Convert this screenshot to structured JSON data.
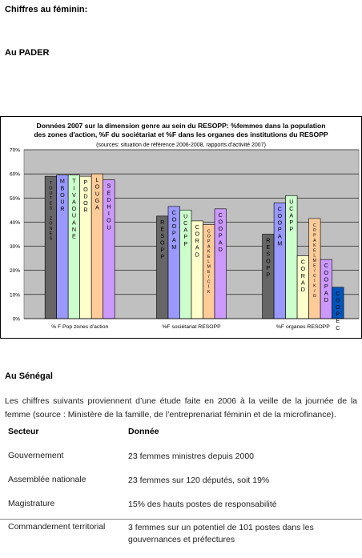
{
  "heading_main": "Chiffres au féminin:",
  "heading_pader": "Au PADER",
  "chart_data": {
    "type": "bar",
    "title_line1": "Données 2007 sur la dimension genre au sein du RESOPP: %femmes dans la population",
    "title_line2": "des zones d'action, %F du sociétariat et %F dans les organes des institutions du RESOPP",
    "subtitle": "(sources: situation de référence 2006-2008, rapports d'activité 2007)",
    "ylim": [
      0,
      70
    ],
    "yticks": [
      "0%",
      "10%",
      "20%",
      "30%",
      "40%",
      "50%",
      "60%",
      "70%"
    ],
    "grid": true,
    "groups": [
      {
        "label": "% F Pop zones d'action",
        "bars": [
          {
            "label": "TOUTES ZONES",
            "value": 59,
            "color": "#666666"
          },
          {
            "label": "MBOUR",
            "value": 59.5,
            "color": "#9999ff"
          },
          {
            "label": "TIVAOUANE",
            "value": 59.5,
            "color": "#ccffcc"
          },
          {
            "label": "PODOR",
            "value": 59,
            "color": "#ffffcc"
          },
          {
            "label": "LOUGA",
            "value": 60,
            "color": "#ffcc99"
          },
          {
            "label": "SEDHIOU",
            "value": 57.5,
            "color": "#cc99ff"
          }
        ]
      },
      {
        "label": "%F sociétariat RESOPP",
        "bars": [
          {
            "label": "RESOPP",
            "value": 42.5,
            "color": "#666666"
          },
          {
            "label": "COOPAM",
            "value": 46.5,
            "color": "#9999ff"
          },
          {
            "label": "UCAPP",
            "value": 45,
            "color": "#ccffcc"
          },
          {
            "label": "CORAD",
            "value": 40.5,
            "color": "#ffffcc"
          },
          {
            "label": "COPAKELME/CIK",
            "value": 39,
            "color": "#ffcc99"
          },
          {
            "label": "COOPAD",
            "value": 45.5,
            "color": "#cc99ff"
          }
        ]
      },
      {
        "label": "%F organes RESOPP",
        "bars": [
          {
            "label": "RESOPP",
            "value": 35,
            "color": "#666666"
          },
          {
            "label": "COOPAM",
            "value": 48,
            "color": "#9999ff"
          },
          {
            "label": "UCAPP",
            "value": 51,
            "color": "#ccffcc"
          },
          {
            "label": "CORAD",
            "value": 26,
            "color": "#ffffcc"
          },
          {
            "label": "COPAKELME/CIK/G",
            "value": 41.5,
            "color": "#ffcc99"
          },
          {
            "label": "COOPAD",
            "value": 24.5,
            "color": "#cc99ff"
          },
          {
            "label": "COOPEC",
            "value": 13,
            "color": "#0055bb"
          }
        ]
      }
    ]
  },
  "heading_senegal": "Au Sénégal",
  "intro_text": "Les chiffres suivants proviennent d’une étude faite en 2006 à la veille de la journée de la femme (source : Ministère de la famille, de l’entreprenariat féminin et de la microfinance).",
  "table": {
    "header": [
      "Secteur",
      "Donnée"
    ],
    "rows": [
      [
        "Gouvernement",
        "23 femmes ministres depuis 2000"
      ],
      [
        "Assemblée nationale",
        "23 femmes sur 120 députés, soit 19%"
      ],
      [
        "Magistrature",
        "15% des hauts postes de responsabilité"
      ],
      [
        "Commandement territorial",
        "3 femmes sur un potentiel de 101 postes dans les gouvernances et préfectures"
      ]
    ]
  }
}
